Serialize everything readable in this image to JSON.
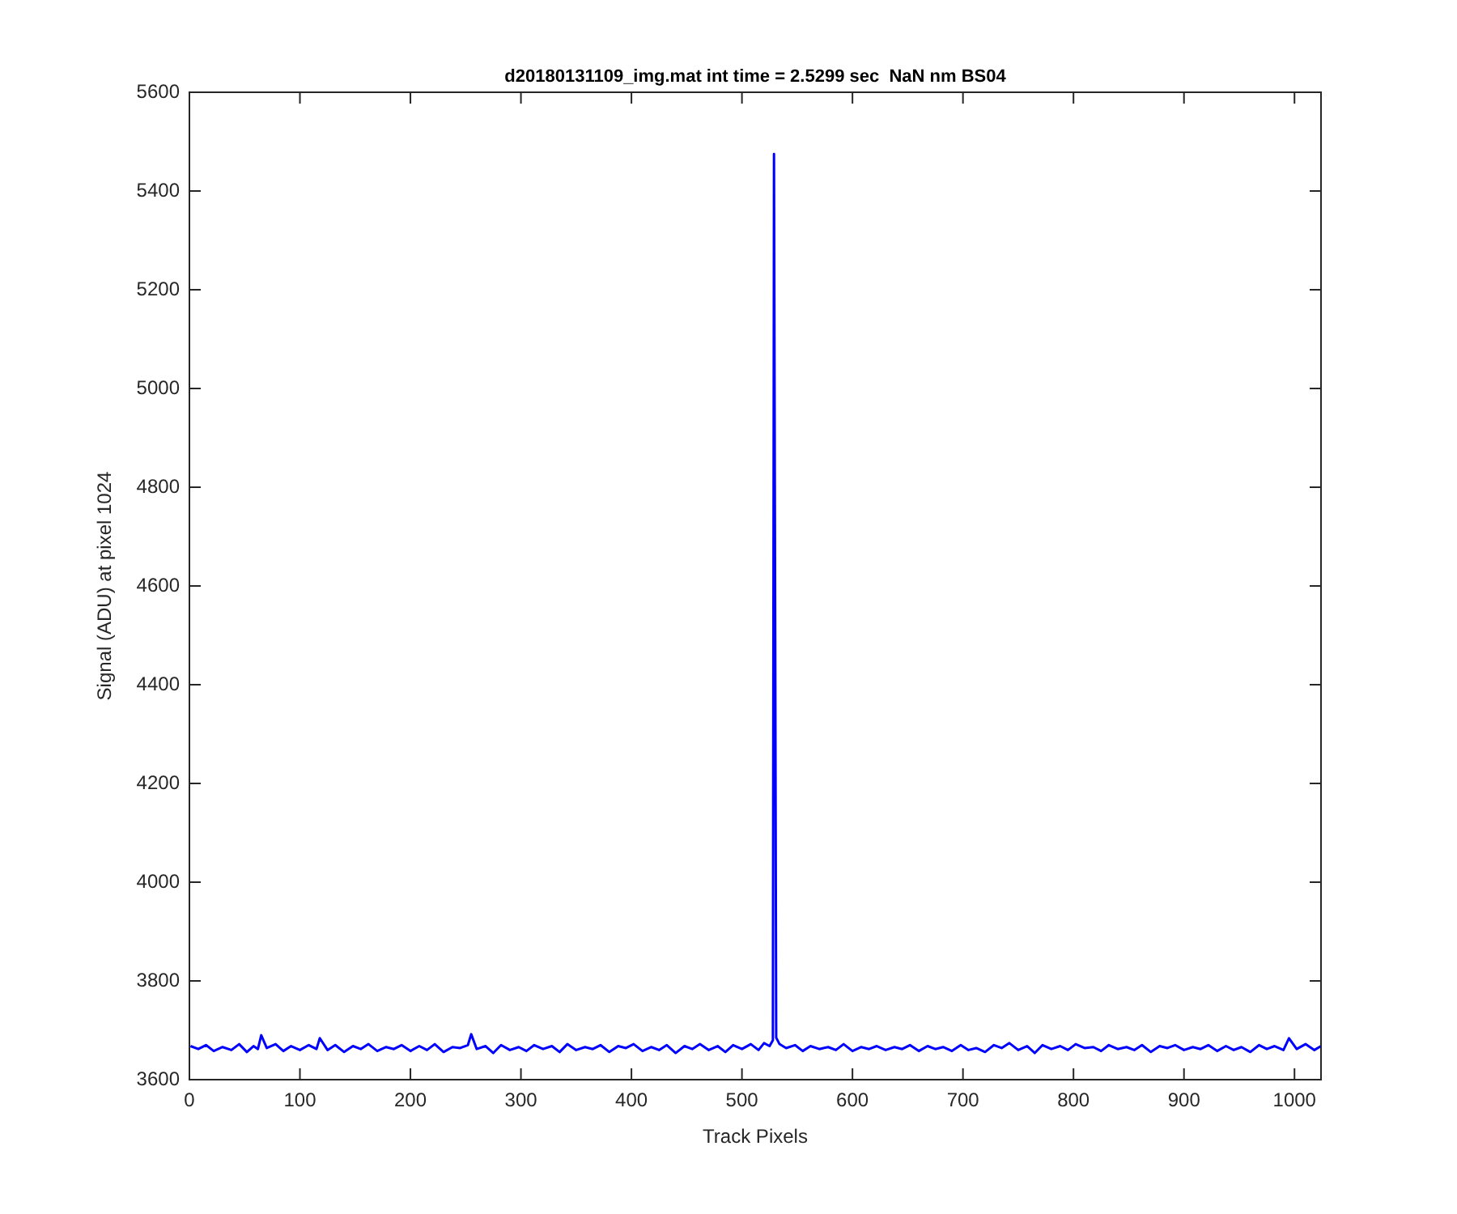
{
  "chart_data": {
    "type": "line",
    "title": "d20180131109_img.mat int time = 2.5299 sec  NaN nm BS04",
    "xlabel": "Track Pixels",
    "ylabel": "Signal (ADU) at pixel 1024",
    "x": [
      1,
      8,
      15,
      22,
      30,
      38,
      45,
      52,
      58,
      62,
      65,
      70,
      78,
      85,
      92,
      100,
      108,
      115,
      118,
      125,
      132,
      140,
      148,
      155,
      162,
      170,
      178,
      185,
      192,
      200,
      208,
      215,
      222,
      230,
      238,
      245,
      252,
      255,
      260,
      268,
      275,
      282,
      290,
      298,
      305,
      312,
      320,
      328,
      335,
      342,
      350,
      358,
      365,
      372,
      380,
      388,
      395,
      402,
      410,
      418,
      425,
      432,
      440,
      448,
      455,
      462,
      470,
      478,
      485,
      492,
      500,
      508,
      515,
      520,
      525,
      528,
      529,
      531,
      534,
      540,
      548,
      555,
      562,
      570,
      578,
      585,
      592,
      600,
      608,
      615,
      622,
      630,
      638,
      645,
      652,
      660,
      668,
      675,
      682,
      690,
      698,
      705,
      712,
      720,
      728,
      735,
      742,
      750,
      758,
      765,
      772,
      780,
      788,
      795,
      802,
      810,
      818,
      825,
      832,
      840,
      848,
      855,
      862,
      870,
      878,
      885,
      892,
      900,
      908,
      915,
      922,
      930,
      938,
      945,
      952,
      960,
      968,
      975,
      982,
      990,
      995,
      1002,
      1010,
      1018,
      1024
    ],
    "series": [
      {
        "color": "#0000ff",
        "values": [
          3668,
          3662,
          3670,
          3658,
          3666,
          3660,
          3672,
          3656,
          3668,
          3662,
          3690,
          3664,
          3672,
          3658,
          3668,
          3660,
          3670,
          3662,
          3684,
          3660,
          3670,
          3656,
          3668,
          3662,
          3672,
          3658,
          3666,
          3662,
          3670,
          3658,
          3668,
          3660,
          3672,
          3656,
          3666,
          3664,
          3670,
          3692,
          3662,
          3668,
          3654,
          3670,
          3660,
          3666,
          3658,
          3670,
          3662,
          3668,
          3656,
          3672,
          3660,
          3666,
          3662,
          3670,
          3656,
          3668,
          3664,
          3672,
          3658,
          3666,
          3660,
          3670,
          3654,
          3668,
          3662,
          3672,
          3660,
          3668,
          3656,
          3670,
          3662,
          3672,
          3660,
          3674,
          3668,
          3680,
          5475,
          3685,
          3672,
          3664,
          3670,
          3658,
          3668,
          3662,
          3666,
          3660,
          3672,
          3658,
          3666,
          3662,
          3668,
          3660,
          3666,
          3662,
          3670,
          3658,
          3668,
          3662,
          3666,
          3658,
          3670,
          3660,
          3664,
          3656,
          3670,
          3664,
          3674,
          3660,
          3668,
          3654,
          3670,
          3662,
          3668,
          3660,
          3672,
          3664,
          3666,
          3658,
          3670,
          3662,
          3666,
          3660,
          3670,
          3656,
          3668,
          3664,
          3670,
          3660,
          3666,
          3662,
          3670,
          3658,
          3668,
          3660,
          3666,
          3656,
          3670,
          3662,
          3668,
          3660,
          3684,
          3662,
          3672,
          3660,
          3668
        ]
      }
    ],
    "xlim": [
      0,
      1024
    ],
    "xticks": [
      0,
      100,
      200,
      300,
      400,
      500,
      600,
      700,
      800,
      900,
      1000
    ],
    "ylim": [
      3600,
      5600
    ],
    "yticks": [
      3600,
      3800,
      4000,
      4200,
      4400,
      4600,
      4800,
      5000,
      5200,
      5400,
      5600
    ],
    "grid": false,
    "legend": false,
    "marker": "none",
    "line_style": "solid"
  }
}
